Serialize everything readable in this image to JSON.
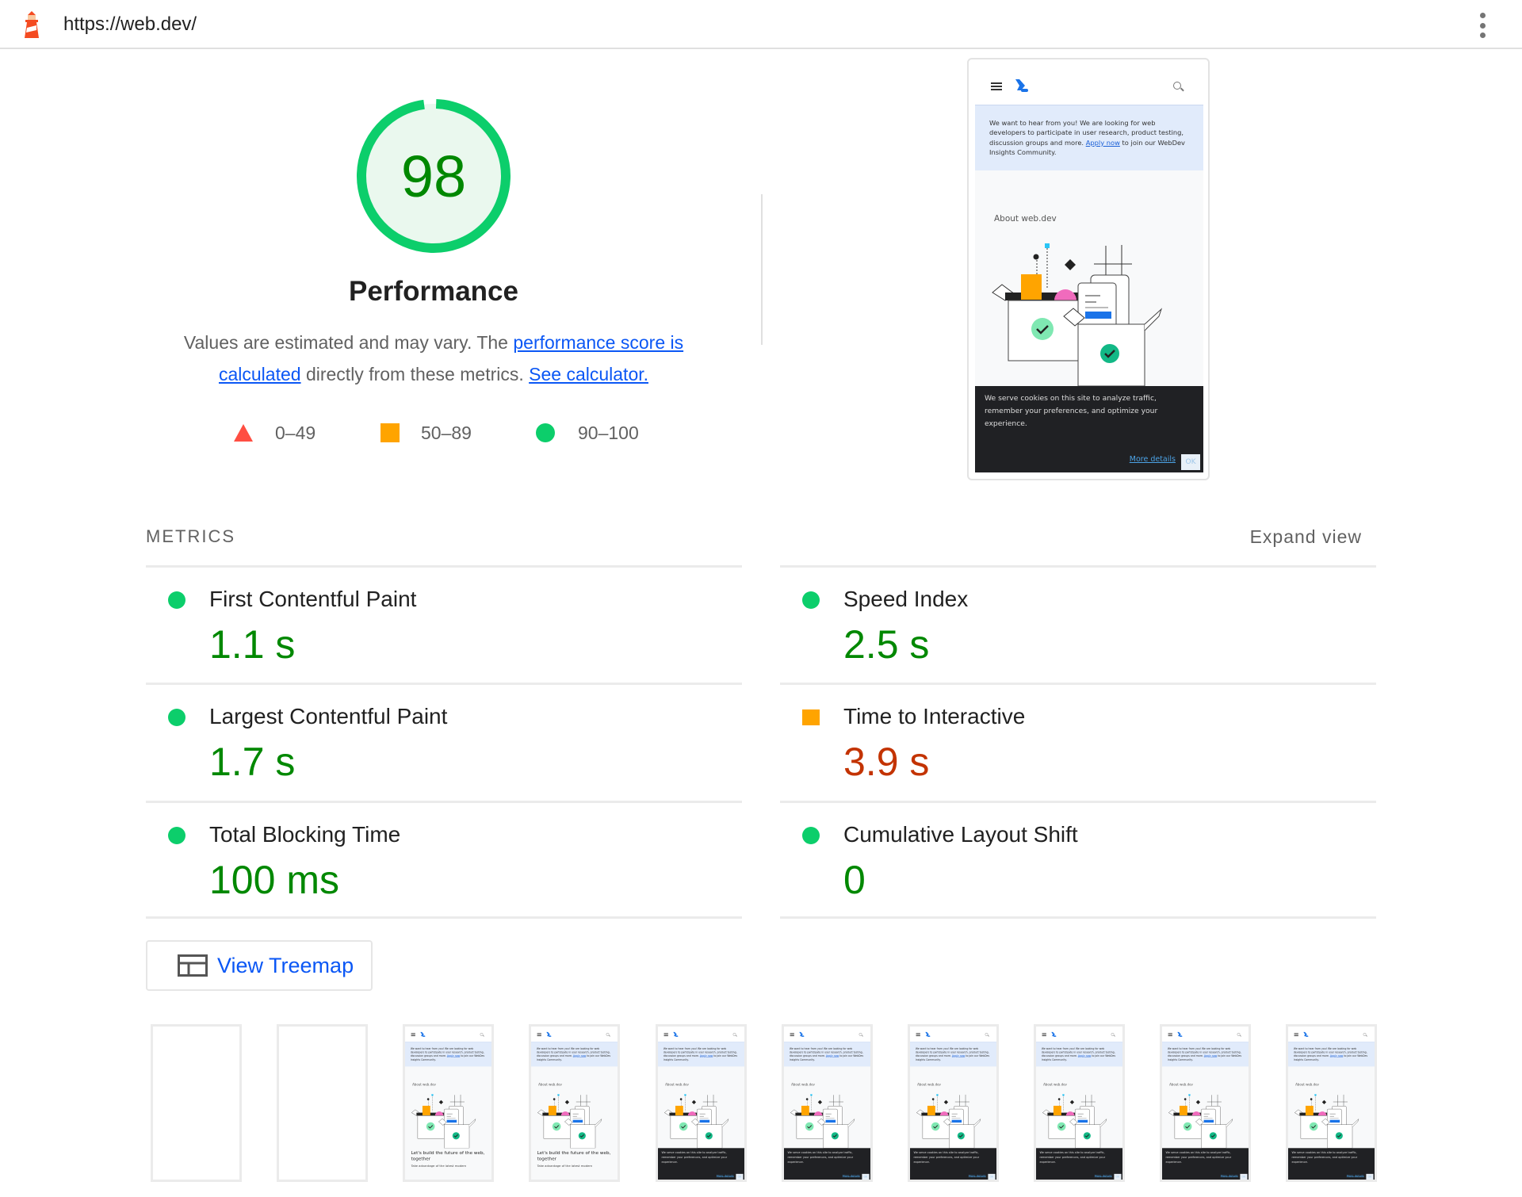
{
  "header": {
    "url": "https://web.dev/",
    "logo": "lighthouse-icon",
    "menu_icon": "kebab-menu-icon"
  },
  "score": {
    "value": 98,
    "fraction": 0.98,
    "category": "Performance",
    "color": "#0cce6b",
    "text_color": "#008800",
    "description_pre": "Values are estimated and may vary. The ",
    "link_score": "performance score is calculated",
    "description_mid": " directly from these metrics. ",
    "link_calc": "See calculator."
  },
  "legend": [
    {
      "shape": "triangle",
      "color": "#ff4e42",
      "label": "0–49"
    },
    {
      "shape": "square",
      "color": "#ffa400",
      "label": "50–89"
    },
    {
      "shape": "circle",
      "color": "#0cce6b",
      "label": "90–100"
    }
  ],
  "screenshot": {
    "banner_pre": "We want to hear from you! We are looking for web developers to participate in user research, product testing, discussion groups and more. ",
    "banner_link": "Apply now",
    "banner_post": " to join our WebDev Insights Community.",
    "about": "About web.dev",
    "hero": "Let's build the future of the web, together",
    "hero_sub": "Take advantage of the latest modern",
    "cookie_text": "We serve cookies on this site to analyze traffic, remember your preferences, and optimize your experience.",
    "cookie_more": "More details",
    "cookie_ok": "OK"
  },
  "metrics": {
    "heading": "METRICS",
    "expand": "Expand view",
    "items": [
      {
        "title": "First Contentful Paint",
        "value": "1.1 s",
        "rating": "pass"
      },
      {
        "title": "Speed Index",
        "value": "2.5 s",
        "rating": "pass"
      },
      {
        "title": "Largest Contentful Paint",
        "value": "1.7 s",
        "rating": "pass"
      },
      {
        "title": "Time to Interactive",
        "value": "3.9 s",
        "rating": "average"
      },
      {
        "title": "Total Blocking Time",
        "value": "100 ms",
        "rating": "pass"
      },
      {
        "title": "Cumulative Layout Shift",
        "value": "0",
        "rating": "pass"
      }
    ],
    "colors": {
      "pass": "#0cce6b",
      "average": "#ffa400",
      "pass_text": "#008800",
      "average_text": "#c33300"
    }
  },
  "treemap": {
    "label": "View Treemap",
    "icon": "treemap-icon"
  },
  "filmstrip": [
    "blank",
    "blank",
    "hero",
    "hero",
    "cookie",
    "cookie",
    "cookie",
    "cookie",
    "cookie",
    "cookie"
  ]
}
